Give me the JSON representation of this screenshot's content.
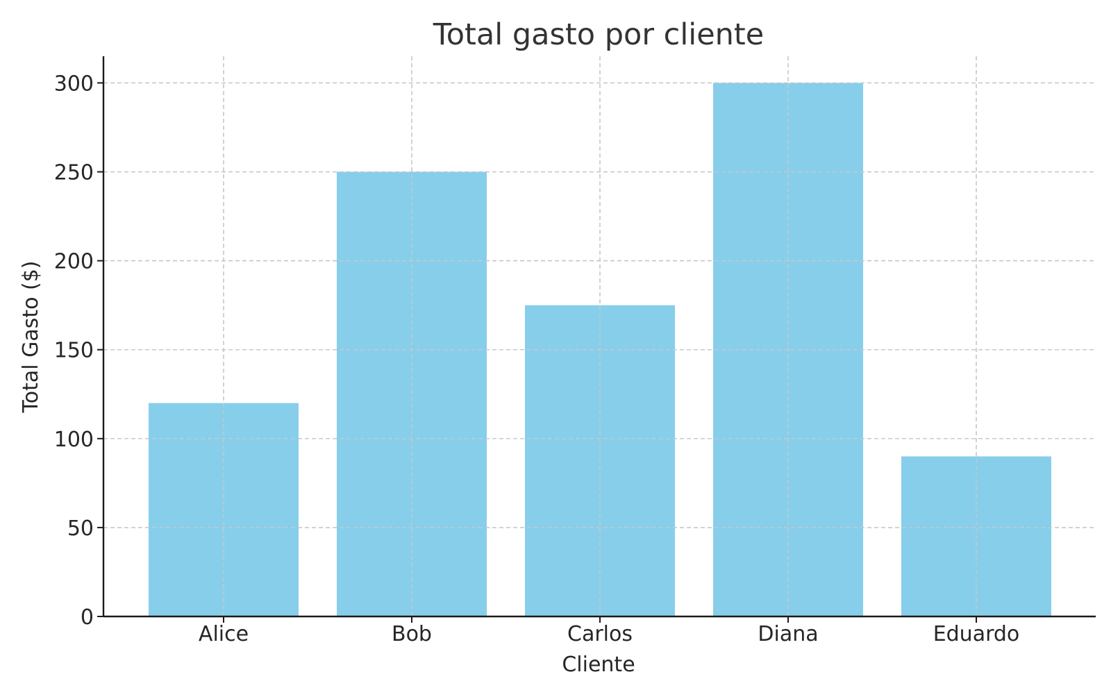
{
  "chart_data": {
    "type": "bar",
    "title": "Total gasto por cliente",
    "xlabel": "Cliente",
    "ylabel": "Total Gasto ($)",
    "categories": [
      "Alice",
      "Bob",
      "Carlos",
      "Diana",
      "Eduardo"
    ],
    "values": [
      120,
      250,
      175,
      300,
      90
    ],
    "ylim": [
      0,
      315
    ],
    "yticks": [
      0,
      50,
      100,
      150,
      200,
      250,
      300
    ],
    "grid": true,
    "bar_color": "#87CEEB"
  }
}
